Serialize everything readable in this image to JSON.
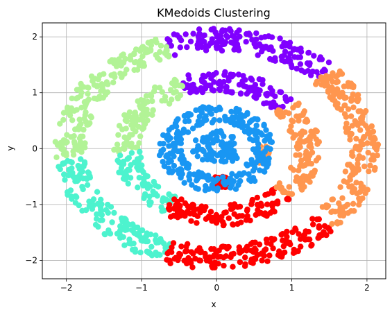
{
  "chart_data": {
    "type": "scatter",
    "title": "KMedoids Clustering",
    "xlabel": "x",
    "ylabel": "y",
    "xlim": [
      -2.32,
      2.25
    ],
    "ylim": [
      -2.33,
      2.25
    ],
    "xticks": [
      -2,
      -1,
      0,
      1,
      2
    ],
    "yticks": [
      -2,
      -1,
      0,
      1,
      2
    ],
    "xtick_labels": [
      "−2",
      "−1",
      "0",
      "1",
      "2"
    ],
    "ytick_labels": [
      "−2",
      "−1",
      "0",
      "1",
      "2"
    ],
    "grid": true,
    "legend": "none",
    "point_count": 1800,
    "clusters": [
      {
        "color": "#8000ff",
        "rings": [
          {
            "radius": 1.95,
            "width": 0.2,
            "angle_deg": [
              43,
              110
            ]
          },
          {
            "radius": 1.2,
            "width": 0.18,
            "angle_deg": [
              40,
              112
            ]
          }
        ]
      },
      {
        "color": "#b2f396",
        "rings": [
          {
            "radius": 1.95,
            "width": 0.2,
            "angle_deg": [
              110,
              185
            ]
          },
          {
            "radius": 1.2,
            "width": 0.18,
            "angle_deg": [
              112,
              183
            ]
          }
        ]
      },
      {
        "color": "#4df3ce",
        "rings": [
          {
            "radius": 1.95,
            "width": 0.2,
            "angle_deg": [
              185,
              250
            ]
          },
          {
            "radius": 1.2,
            "width": 0.18,
            "angle_deg": [
              183,
              238
            ]
          }
        ]
      },
      {
        "color": "#ff0000",
        "rings": [
          {
            "radius": 1.95,
            "width": 0.2,
            "angle_deg": [
              250,
              318
            ]
          },
          {
            "radius": 1.2,
            "width": 0.18,
            "angle_deg": [
              238,
              318
            ]
          },
          {
            "radius": 0.6,
            "width": 0.1,
            "angle_deg": [
              268,
              285
            ]
          }
        ]
      },
      {
        "color": "#ff964f",
        "rings": [
          {
            "radius": 1.95,
            "width": 0.2,
            "angle_deg": [
              318,
              403
            ]
          },
          {
            "radius": 1.2,
            "width": 0.18,
            "angle_deg": [
              318,
              400
            ]
          },
          {
            "radius": 0.62,
            "width": 0.08,
            "angle_deg": [
              335,
              365
            ]
          }
        ]
      },
      {
        "color": "#1996f3",
        "rings": [
          {
            "radius": 0.62,
            "width": 0.15,
            "angle_deg": [
              0,
              360
            ]
          },
          {
            "radius": 0.2,
            "width": 0.12,
            "angle_deg": [
              0,
              360
            ]
          }
        ]
      }
    ]
  }
}
